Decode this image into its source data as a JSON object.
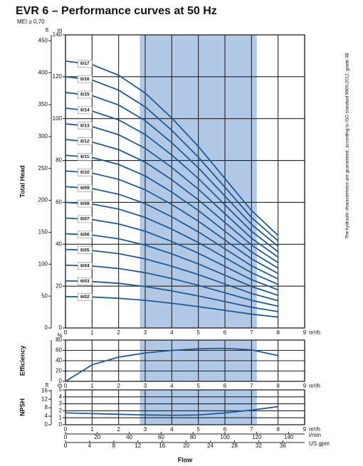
{
  "header": {
    "title": "EVR 6 – Performance curves at 50 Hz",
    "subtitle": "MEI ≥ 0,70"
  },
  "note": "The hydraulic characteristics are guaranteed, according to ISO standard 9906:2012, grade 3B",
  "chart_data": [
    {
      "type": "line",
      "y_label": "Total Head",
      "color": "#1f5a96",
      "highlight": [
        2.8,
        7.2
      ],
      "highlight_color": "#b1c8e6",
      "x": [
        0,
        1,
        2,
        3,
        4,
        5,
        6,
        7,
        8
      ],
      "xlim": [
        0,
        9
      ],
      "xticks": [
        0,
        1,
        2,
        3,
        4,
        5,
        6,
        7,
        8,
        9
      ],
      "x_unit": "m³/h",
      "ylim": [
        0,
        140
      ],
      "yticks": [
        0,
        20,
        40,
        60,
        80,
        100,
        120,
        140
      ],
      "y_unit": "m",
      "y2lim": [
        0,
        459.3
      ],
      "y2ticks": [
        0,
        50,
        100,
        150,
        200,
        250,
        300,
        350,
        400,
        450
      ],
      "y2_unit": "ft",
      "series": [
        {
          "name": "6/02",
          "values": [
            15,
            14.8,
            14.2,
            13.2,
            11.8,
            10.2,
            8.4,
            6.6,
            5.2
          ]
        },
        {
          "name": "6/03",
          "values": [
            22.5,
            22.2,
            21.3,
            19.8,
            17.7,
            15.3,
            12.6,
            9.9,
            7.8
          ]
        },
        {
          "name": "6/04",
          "values": [
            30,
            29.6,
            28.4,
            26.4,
            23.6,
            20.4,
            16.8,
            13.2,
            10.4
          ]
        },
        {
          "name": "6/05",
          "values": [
            37.5,
            37,
            35.5,
            33,
            29.5,
            25.5,
            21,
            16.5,
            13
          ]
        },
        {
          "name": "6/06",
          "values": [
            45,
            44.4,
            42.6,
            39.6,
            35.4,
            30.6,
            25.2,
            19.8,
            15.6
          ]
        },
        {
          "name": "6/07",
          "values": [
            52.5,
            51.8,
            49.7,
            46.2,
            41.3,
            35.7,
            29.4,
            23.1,
            18.2
          ]
        },
        {
          "name": "6/08",
          "values": [
            60,
            59.2,
            56.8,
            52.8,
            47.2,
            40.8,
            33.6,
            26.4,
            20.8
          ]
        },
        {
          "name": "6/09",
          "values": [
            67.5,
            66.6,
            63.9,
            59.4,
            53.1,
            45.9,
            37.8,
            29.7,
            23.4
          ]
        },
        {
          "name": "6/10",
          "values": [
            75,
            74,
            71,
            66,
            59,
            51,
            42,
            33,
            26
          ]
        },
        {
          "name": "6/11",
          "values": [
            82.5,
            81.4,
            78.1,
            72.6,
            64.9,
            56.1,
            46.2,
            36.3,
            28.6
          ]
        },
        {
          "name": "6/12",
          "values": [
            90,
            88.8,
            85.2,
            79.2,
            70.8,
            61.2,
            50.4,
            39.6,
            31.2
          ]
        },
        {
          "name": "6/13",
          "values": [
            97.5,
            96.2,
            92.3,
            85.8,
            76.7,
            66.3,
            54.6,
            42.9,
            33.8
          ]
        },
        {
          "name": "6/14",
          "values": [
            105,
            103.6,
            99.4,
            92.4,
            82.6,
            71.4,
            58.8,
            46.2,
            36.4
          ]
        },
        {
          "name": "6/15",
          "values": [
            112.5,
            111,
            106.5,
            99,
            88.5,
            76.5,
            63,
            49.5,
            39
          ]
        },
        {
          "name": "6/16",
          "values": [
            120,
            118.4,
            113.6,
            105.6,
            94.4,
            81.6,
            67.2,
            52.8,
            41.6
          ]
        },
        {
          "name": "6/17",
          "values": [
            127.5,
            125.8,
            120.7,
            112.2,
            100.3,
            86.7,
            71.4,
            56.1,
            44.2
          ]
        }
      ]
    },
    {
      "type": "line",
      "y_label": "Efficiency",
      "color": "#1f5a96",
      "highlight": [
        2.8,
        7.2
      ],
      "highlight_color": "#b1c8e6",
      "x": [
        0,
        1,
        2,
        3,
        4,
        5,
        6,
        7,
        8
      ],
      "xlim": [
        0,
        9
      ],
      "xticks": [
        0,
        1,
        2,
        3,
        4,
        5,
        6,
        7,
        8,
        9
      ],
      "x_unit": "m³/h",
      "ylim": [
        0,
        80
      ],
      "yticks": [
        0,
        20,
        40,
        60,
        80
      ],
      "y_unit": "%",
      "values": [
        0,
        32,
        47,
        55,
        60,
        63,
        64,
        61,
        50
      ]
    },
    {
      "type": "line",
      "y_label": "NPSH",
      "color": "#1f5a96",
      "highlight": [
        2.8,
        7.2
      ],
      "highlight_color": "#b1c8e6",
      "x": [
        0,
        1,
        2,
        3,
        4,
        5,
        6,
        7,
        8
      ],
      "xlim": [
        0,
        9
      ],
      "xticks": [
        0,
        1,
        2,
        3,
        4,
        5,
        6,
        7,
        8,
        9
      ],
      "x_unit": "m³/h",
      "ylim": [
        0,
        5
      ],
      "yticks": [
        0,
        1,
        2,
        3,
        4,
        5
      ],
      "y_unit": "m",
      "y2lim": [
        0,
        16.4
      ],
      "y2ticks": [
        0,
        4,
        8,
        12,
        16
      ],
      "y2_unit": "ft",
      "values": [
        1.7,
        1.6,
        1.5,
        1.4,
        1.35,
        1.4,
        1.7,
        2.1,
        2.6
      ],
      "x_label": "Flow",
      "flow_scales": [
        {
          "unit": "l/min",
          "lim": [
            0,
            150
          ],
          "ticks": [
            0,
            20,
            40,
            60,
            80,
            100,
            120,
            140
          ]
        },
        {
          "unit": "US gpm",
          "lim": [
            0,
            39.6
          ],
          "ticks": [
            0,
            4,
            8,
            12,
            16,
            20,
            24,
            28,
            32,
            36
          ]
        }
      ]
    }
  ]
}
